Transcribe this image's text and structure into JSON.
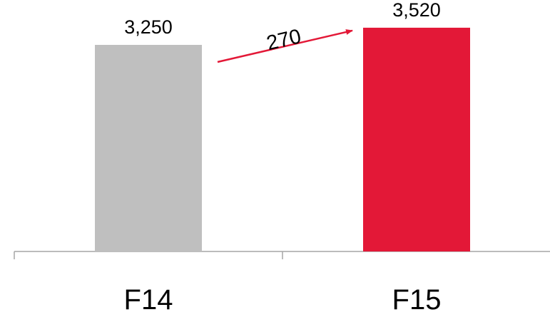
{
  "chart_data": {
    "type": "bar",
    "categories": [
      "F14",
      "F15"
    ],
    "values": [
      3250,
      3520
    ],
    "value_labels": [
      "3,250",
      "3,520"
    ],
    "bar_colors": [
      "#bfbfbf",
      "#e31837"
    ],
    "ylim": [
      0,
      3900
    ],
    "grid": false,
    "legend": "none",
    "annotation": {
      "text": "270",
      "type": "arrow",
      "from_category": "F14",
      "to_category": "F15",
      "color": "#e31837"
    }
  }
}
